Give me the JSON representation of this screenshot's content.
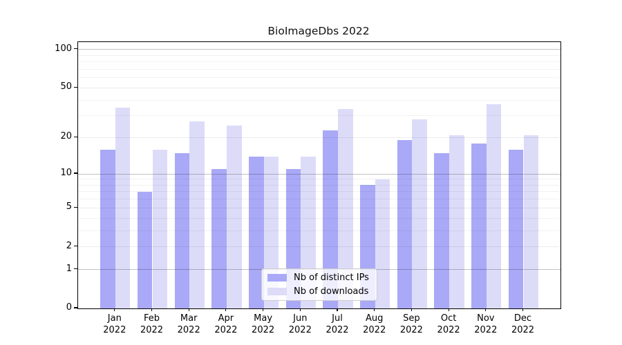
{
  "title": "BioImageDbs 2022",
  "chart_data": {
    "type": "bar",
    "title": "BioImageDbs 2022",
    "categories": [
      "Jan",
      "Feb",
      "Mar",
      "Apr",
      "May",
      "Jun",
      "Jul",
      "Aug",
      "Sep",
      "Oct",
      "Nov",
      "Dec"
    ],
    "year_label": "2022",
    "series": [
      {
        "name": "Nb of distinct IPs",
        "color": "#a9a9f7",
        "values": [
          16,
          7,
          15,
          11,
          14,
          11,
          23,
          8,
          19,
          15,
          18,
          16
        ]
      },
      {
        "name": "Nb of downloads",
        "color": "#dcdcf9",
        "values": [
          35,
          16,
          27,
          25,
          14,
          14,
          34,
          9,
          28,
          21,
          37,
          21
        ]
      }
    ],
    "yscale": "log1p",
    "ylim": [
      0,
      114
    ],
    "grid": true,
    "y_axis": {
      "tick_labels": [
        "100",
        "50",
        "20",
        "10",
        "5",
        "2",
        "1",
        "0"
      ],
      "tick_values": [
        100,
        50,
        20,
        10,
        5,
        2,
        1,
        0
      ],
      "minor_gridline_values": [
        3,
        4,
        6,
        7,
        8,
        9,
        30,
        40,
        60,
        70,
        80,
        90
      ],
      "decade_gridline_values": [
        1,
        10,
        100
      ]
    },
    "legend": {
      "position": "lower center"
    }
  },
  "colors": {
    "bar_dark": "#a9a9f7",
    "bar_light": "#dcdcf9",
    "grid_minor": "rgba(0,0,0,0.055)",
    "grid_labeled": "rgba(0,0,0,0.075)",
    "grid_decade": "rgba(0,0,0,0.24)",
    "spine": "#000000"
  }
}
